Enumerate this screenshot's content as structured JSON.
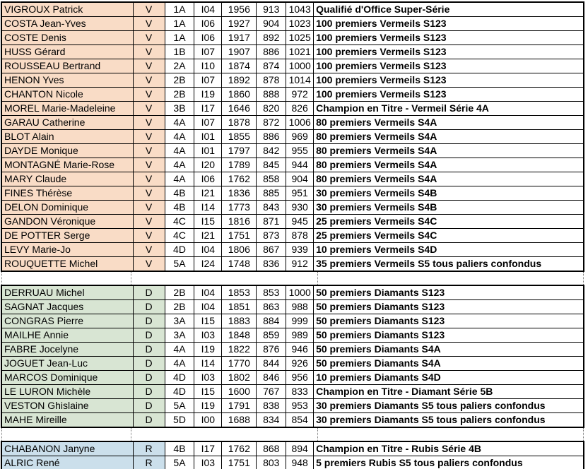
{
  "table": {
    "cell_names": [
      "player-name",
      "category",
      "series",
      "club-code",
      "rating-1",
      "rating-2",
      "rating-3",
      "qualification"
    ],
    "section_colors": {
      "vermeil": "#F9DCC6",
      "diamant": "#D8E5D3",
      "rubis": "#CBDFEB"
    },
    "sections": [
      {
        "id": "vermeil",
        "category_letter": "V",
        "rows": [
          [
            "VIGROUX Patrick",
            "V",
            "1A",
            "I04",
            "1956",
            "913",
            "1043",
            "Qualifié d'Office Super-Série"
          ],
          [
            "COSTA Jean-Yves",
            "V",
            "1A",
            "I06",
            "1927",
            "904",
            "1023",
            "100 premiers Vermeils S123"
          ],
          [
            "COSTE Denis",
            "V",
            "1A",
            "I06",
            "1917",
            "892",
            "1025",
            "100 premiers Vermeils S123"
          ],
          [
            "HUSS Gérard",
            "V",
            "1B",
            "I07",
            "1907",
            "886",
            "1021",
            "100 premiers Vermeils S123"
          ],
          [
            "ROUSSEAU Bertrand",
            "V",
            "2A",
            "I10",
            "1874",
            "874",
            "1000",
            "100 premiers Vermeils S123"
          ],
          [
            "HENON Yves",
            "V",
            "2B",
            "I07",
            "1892",
            "878",
            "1014",
            "100 premiers Vermeils S123"
          ],
          [
            "CHANTON Nicole",
            "V",
            "2B",
            "I19",
            "1860",
            "888",
            "972",
            "100 premiers Vermeils S123"
          ],
          [
            "MOREL Marie-Madeleine",
            "V",
            "3B",
            "I17",
            "1646",
            "820",
            "826",
            "Champion en Titre - Vermeil Série 4A"
          ],
          [
            "GARAU Catherine",
            "V",
            "4A",
            "I07",
            "1878",
            "872",
            "1006",
            "80 premiers Vermeils S4A"
          ],
          [
            "BLOT Alain",
            "V",
            "4A",
            "I01",
            "1855",
            "886",
            "969",
            "80 premiers Vermeils S4A"
          ],
          [
            "DAYDE Monique",
            "V",
            "4A",
            "I01",
            "1797",
            "842",
            "955",
            "80 premiers Vermeils S4A"
          ],
          [
            "MONTAGNÉ Marie-Rose",
            "V",
            "4A",
            "I20",
            "1789",
            "845",
            "944",
            "80 premiers Vermeils S4A"
          ],
          [
            "MARY Claude",
            "V",
            "4A",
            "I06",
            "1762",
            "858",
            "904",
            "80 premiers Vermeils S4A"
          ],
          [
            "FINES Thérèse",
            "V",
            "4B",
            "I21",
            "1836",
            "885",
            "951",
            "30 premiers Vermeils S4B"
          ],
          [
            "DELON Dominique",
            "V",
            "4B",
            "I14",
            "1773",
            "843",
            "930",
            "30 premiers Vermeils S4B"
          ],
          [
            "GANDON Véronique",
            "V",
            "4C",
            "I15",
            "1816",
            "871",
            "945",
            "25 premiers Vermeils S4C"
          ],
          [
            "DE POTTER Serge",
            "V",
            "4C",
            "I21",
            "1751",
            "873",
            "878",
            "25 premiers Vermeils S4C"
          ],
          [
            "LEVY Marie-Jo",
            "V",
            "4D",
            "I04",
            "1806",
            "867",
            "939",
            "10 premiers Vermeils S4D"
          ],
          [
            "ROUQUETTE Michel",
            "V",
            "5A",
            "I24",
            "1748",
            "836",
            "912",
            "35 premiers Vermeils S5 tous paliers confondus"
          ]
        ]
      },
      {
        "id": "diamant",
        "category_letter": "D",
        "rows": [
          [
            "DERRUAU Michel",
            "D",
            "2B",
            "I04",
            "1853",
            "853",
            "1000",
            "50 premiers Diamants S123"
          ],
          [
            "SAGNAT Jacques",
            "D",
            "2B",
            "I04",
            "1851",
            "863",
            "988",
            "50 premiers Diamants S123"
          ],
          [
            "CONGRAS Pierre",
            "D",
            "3A",
            "I15",
            "1883",
            "884",
            "999",
            "50 premiers Diamants S123"
          ],
          [
            "MAILHE Annie",
            "D",
            "3A",
            "I03",
            "1848",
            "859",
            "989",
            "50 premiers Diamants S123"
          ],
          [
            "FABRE Jocelyne",
            "D",
            "4A",
            "I19",
            "1822",
            "876",
            "946",
            "50 premiers Diamants S4A"
          ],
          [
            "JOGUET Jean-Luc",
            "D",
            "4A",
            "I14",
            "1770",
            "844",
            "926",
            "50 premiers Diamants S4A"
          ],
          [
            "MARCOS Dominique",
            "D",
            "4D",
            "I03",
            "1802",
            "846",
            "956",
            "10 premiers Diamants S4D"
          ],
          [
            "LE LURON Michèle",
            "D",
            "4D",
            "I15",
            "1600",
            "767",
            "833",
            "Champion en Titre - Diamant Série 5B"
          ],
          [
            "VESTON Ghislaine",
            "D",
            "5A",
            "I19",
            "1791",
            "838",
            "953",
            "30 premiers Diamants S5 tous paliers confondus"
          ],
          [
            "MAHE Mireille",
            "D",
            "5D",
            "I00",
            "1688",
            "834",
            "854",
            "30 premiers Diamants S5 tous paliers confondus"
          ]
        ]
      },
      {
        "id": "rubis",
        "category_letter": "R",
        "rows": [
          [
            "CHABANON Janyne",
            "R",
            "4B",
            "I17",
            "1762",
            "868",
            "894",
            "Champion en Titre - Rubis Série 4B"
          ],
          [
            "ALRIC René",
            "R",
            "5A",
            "I03",
            "1751",
            "803",
            "948",
            "5 premiers Rubis S5 tous paliers confondus"
          ]
        ]
      }
    ]
  }
}
